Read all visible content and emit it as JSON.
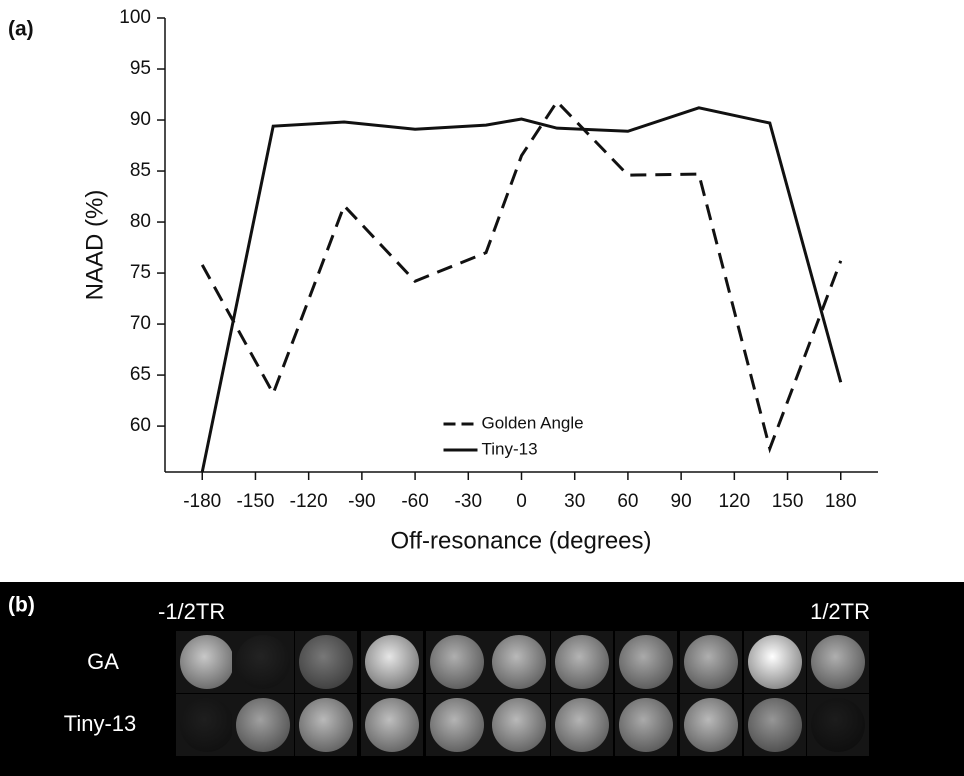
{
  "chart_data": {
    "type": "line",
    "y_label": "NAAD (%)",
    "x_label": "Off-resonance (degrees)",
    "x": [
      -180,
      -140,
      -100,
      -60,
      -20,
      0,
      20,
      60,
      100,
      140,
      180
    ],
    "series": [
      {
        "name": "Golden Angle",
        "color": "#111111",
        "dash": true,
        "values": [
          75.8,
          63.2,
          81.6,
          74.2,
          77.0,
          86.5,
          91.8,
          84.6,
          84.7,
          57.8,
          76.2
        ]
      },
      {
        "name": "Tiny-13",
        "color": "#111111",
        "dash": false,
        "values": [
          55.5,
          89.4,
          89.8,
          89.1,
          89.5,
          90.1,
          89.2,
          88.9,
          91.2,
          89.7,
          64.3
        ]
      }
    ],
    "xlim": [
      -201,
      201
    ],
    "ylim": [
      55.5,
      100
    ],
    "xticks": [
      -180,
      -150,
      -120,
      -90,
      -60,
      -30,
      0,
      30,
      60,
      90,
      120,
      150,
      180
    ],
    "yticks": [
      60,
      65,
      70,
      75,
      80,
      85,
      90,
      95,
      100
    ],
    "legend": "lower center",
    "grid": false
  },
  "panel_a_label": "(a)",
  "panel_b": {
    "label": "(b)",
    "left_label": "-1/2TR",
    "right_label": "1/2TR",
    "rows": [
      "GA",
      "Tiny-13"
    ]
  }
}
